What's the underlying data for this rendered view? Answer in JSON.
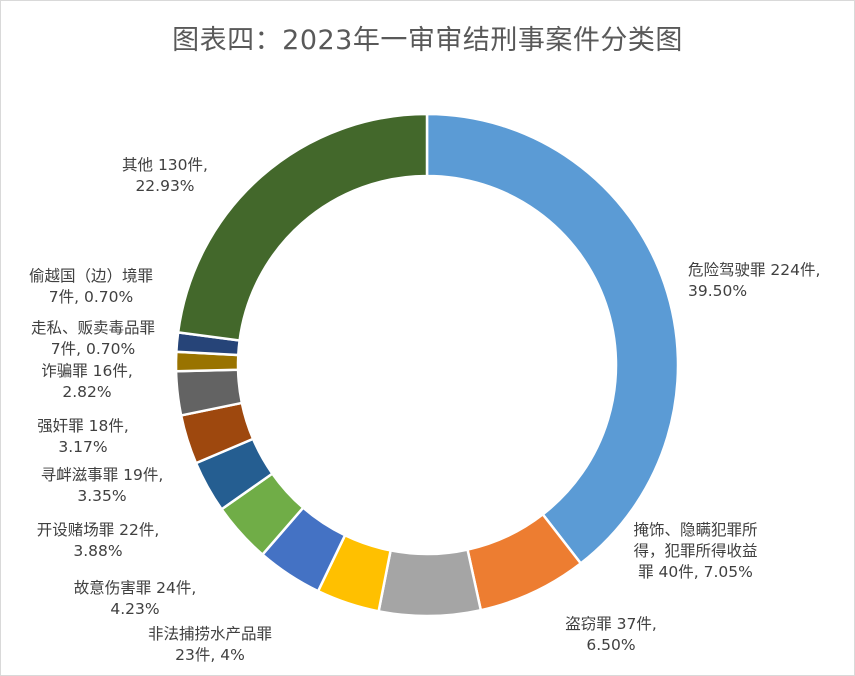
{
  "chart_data": {
    "type": "pie",
    "variant": "donut",
    "title": "图表四：2023年一审审结刑事案件分类图",
    "legend": "none",
    "slices": [
      {
        "key": "dangerous-driving",
        "category": "危险驾驶罪",
        "count": 224,
        "percent": 39.5,
        "color": "#5B9BD5",
        "label_lines": [
          "危险驾驶罪 224件,",
          "39.50%"
        ]
      },
      {
        "key": "concealing-proceeds",
        "category": "掩饰、隐瞒犯罪所得，犯罪所得收益罪",
        "count": 40,
        "percent": 7.05,
        "color": "#ED7D31",
        "label_lines": [
          "掩饰、隐瞒犯罪所",
          "得，犯罪所得收益",
          "罪 40件, 7.05%"
        ]
      },
      {
        "key": "theft",
        "category": "盗窃罪",
        "count": 37,
        "percent": 6.5,
        "color": "#A5A5A5",
        "label_lines": [
          "盗窃罪 37件,",
          "6.50%"
        ]
      },
      {
        "key": "illegal-fishing",
        "category": "非法捕捞水产品罪",
        "count": 23,
        "percent": 4,
        "color": "#FFC000",
        "label_lines": [
          "非法捕捞水产品罪",
          "23件, 4%"
        ]
      },
      {
        "key": "intentional-injury",
        "category": "故意伤害罪",
        "count": 24,
        "percent": 4.23,
        "color": "#4472C4",
        "label_lines": [
          "故意伤害罪 24件,",
          "4.23%"
        ]
      },
      {
        "key": "casino",
        "category": "开设赌场罪",
        "count": 22,
        "percent": 3.88,
        "color": "#70AD47",
        "label_lines": [
          "开设赌场罪 22件,",
          "3.88%"
        ]
      },
      {
        "key": "provoking-trouble",
        "category": "寻衅滋事罪",
        "count": 19,
        "percent": 3.35,
        "color": "#255E91",
        "label_lines": [
          "寻衅滋事罪 19件,",
          "3.35%"
        ]
      },
      {
        "key": "rape",
        "category": "强奸罪",
        "count": 18,
        "percent": 3.17,
        "color": "#9E480E",
        "label_lines": [
          "强奸罪 18件,",
          "3.17%"
        ]
      },
      {
        "key": "fraud",
        "category": "诈骗罪",
        "count": 16,
        "percent": 2.82,
        "color": "#636363",
        "label_lines": [
          "诈骗罪 16件,",
          "2.82%"
        ]
      },
      {
        "key": "drugs",
        "category": "走私、贩卖毒品罪",
        "count": 7,
        "percent": 0.7,
        "color": "#997300",
        "label_lines": [
          "走私、贩卖毒品罪",
          "7件, 0.70%"
        ]
      },
      {
        "key": "border-crossing",
        "category": "偷越国（边）境罪",
        "count": 7,
        "percent": 0.7,
        "color": "#264478",
        "label_lines": [
          "偷越国（边）境罪",
          "7件, 0.70%"
        ]
      },
      {
        "key": "other",
        "category": "其他",
        "count": 130,
        "percent": 22.93,
        "color": "#43682B",
        "label_lines": [
          "其他 130件,",
          "22.93%"
        ]
      }
    ]
  }
}
